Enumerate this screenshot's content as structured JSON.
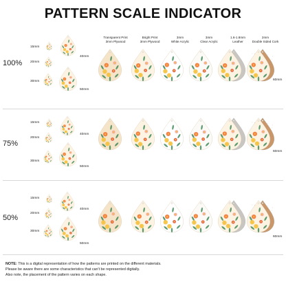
{
  "title": "PATTERN SCALE INDICATOR",
  "columns": [
    {
      "line1": "Transparent Print",
      "line2": "3mm Plywood"
    },
    {
      "line1": "Bright Print",
      "line2": "3mm Plywood"
    },
    {
      "line1": "3mm",
      "line2": "White Acrylic"
    },
    {
      "line1": "3mm",
      "line2": "Clear Acrylic"
    },
    {
      "line1": "1.6-1.8mm",
      "line2": "Leather"
    },
    {
      "line1": "2mm",
      "line2": "Double Sided Cork"
    }
  ],
  "sections": [
    {
      "label": "100%"
    },
    {
      "label": "75%"
    },
    {
      "label": "50%"
    }
  ],
  "size_labels": {
    "s15": "15mm",
    "s20": "20mm",
    "s30": "30mm",
    "s40": "40mm",
    "s50": "50mm",
    "s60": "60mm"
  },
  "note": {
    "prefix": "NOTE:",
    "line1": "This is a digital representation of how the patterns are printed on the different materials.",
    "line2": "Please be aware there are some characteristics that can't be represented digitally.",
    "line3": "Also note, the placement of the pattern varies on each shape."
  },
  "colors": {
    "plywood_bg": "#f6e4c8",
    "bright_bg": "#fdf3e3",
    "acrylic_bg": "#ffffff",
    "leather": "#c9c6c2",
    "cork": "#c9976a",
    "flower_orange": "#f07a3c",
    "flower_red": "#e2523e",
    "flower_yellow": "#f5c242",
    "flower_pink": "#f3a6a0",
    "leaf_green": "#3f8a5a"
  }
}
